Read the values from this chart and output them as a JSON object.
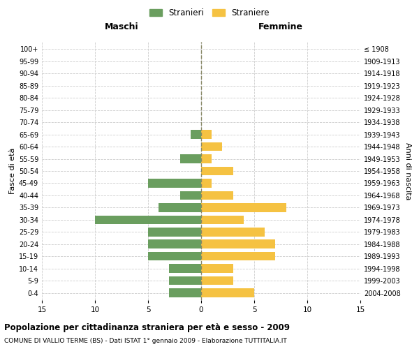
{
  "age_groups": [
    "0-4",
    "5-9",
    "10-14",
    "15-19",
    "20-24",
    "25-29",
    "30-34",
    "35-39",
    "40-44",
    "45-49",
    "50-54",
    "55-59",
    "60-64",
    "65-69",
    "70-74",
    "75-79",
    "80-84",
    "85-89",
    "90-94",
    "95-99",
    "100+"
  ],
  "birth_years": [
    "2004-2008",
    "1999-2003",
    "1994-1998",
    "1989-1993",
    "1984-1988",
    "1979-1983",
    "1974-1978",
    "1969-1973",
    "1964-1968",
    "1959-1963",
    "1954-1958",
    "1949-1953",
    "1944-1948",
    "1939-1943",
    "1934-1938",
    "1929-1933",
    "1924-1928",
    "1919-1923",
    "1914-1918",
    "1909-1913",
    "≤ 1908"
  ],
  "maschi": [
    3,
    3,
    3,
    5,
    5,
    5,
    10,
    4,
    2,
    5,
    0,
    2,
    0,
    1,
    0,
    0,
    0,
    0,
    0,
    0,
    0
  ],
  "femmine": [
    5,
    3,
    3,
    7,
    7,
    6,
    4,
    8,
    3,
    1,
    3,
    1,
    2,
    1,
    0,
    0,
    0,
    0,
    0,
    0,
    0
  ],
  "color_maschi": "#6a9e5f",
  "color_femmine": "#f5c242",
  "title": "Popolazione per cittadinanza straniera per età e sesso - 2009",
  "subtitle": "COMUNE DI VALLIO TERME (BS) - Dati ISTAT 1° gennaio 2009 - Elaborazione TUTTITALIA.IT",
  "xlabel_left": "Maschi",
  "xlabel_right": "Femmine",
  "ylabel_left": "Fasce di età",
  "ylabel_right": "Anni di nascita",
  "legend_maschi": "Stranieri",
  "legend_femmine": "Straniere",
  "xlim": 15,
  "background_color": "#ffffff",
  "grid_color": "#cccccc"
}
